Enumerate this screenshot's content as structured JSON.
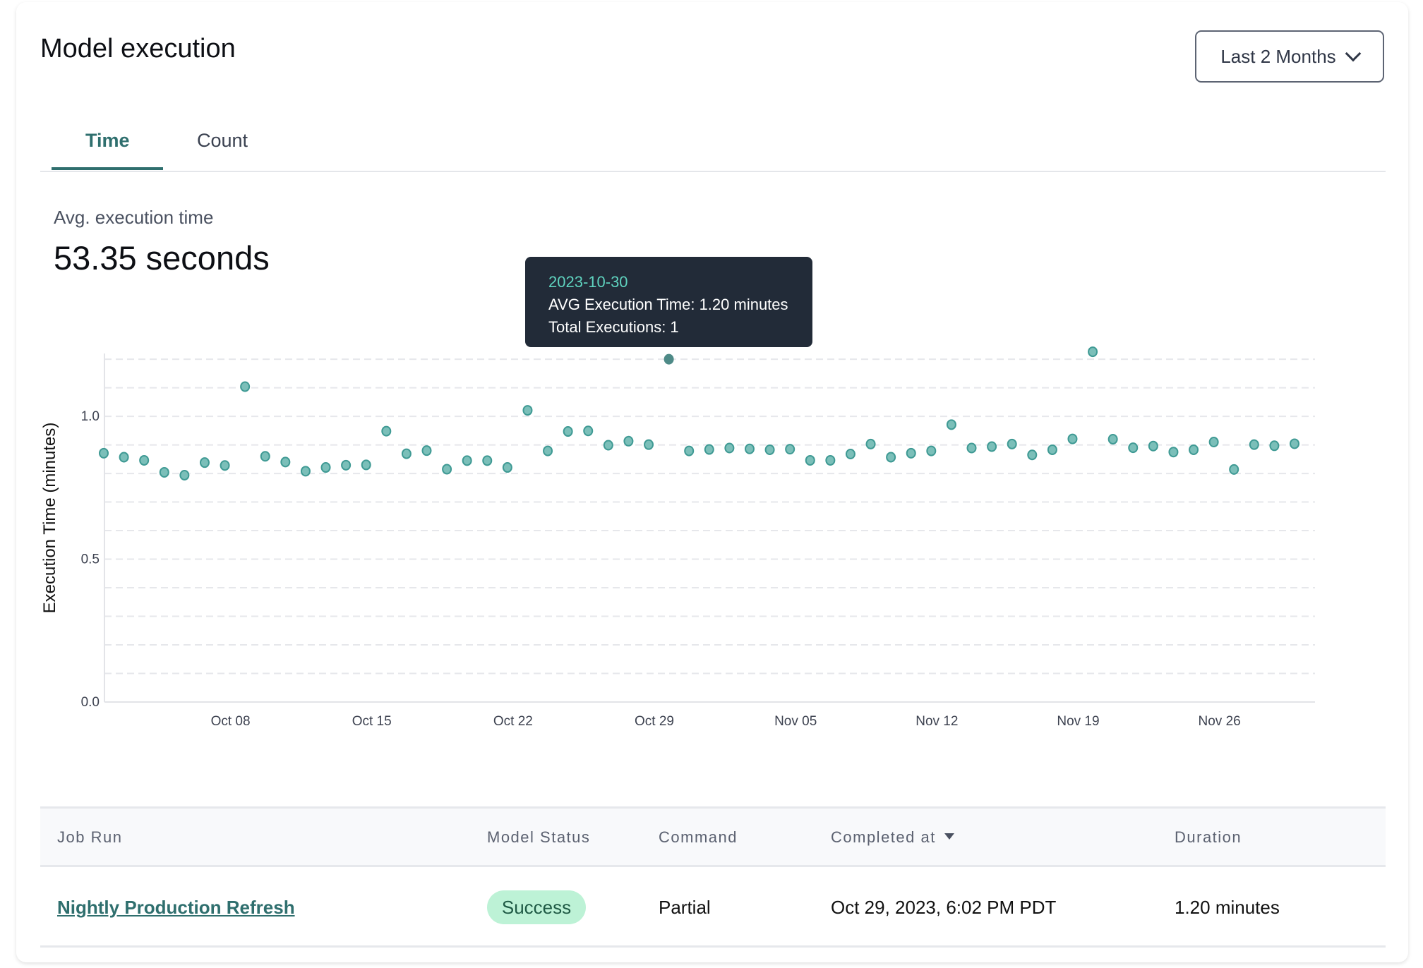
{
  "header": {
    "title": "Model execution",
    "range_dropdown": "Last 2 Months",
    "range_icon": "chevron-down-icon"
  },
  "tabs": [
    {
      "label": "Time",
      "active": true
    },
    {
      "label": "Count",
      "active": false
    }
  ],
  "summary": {
    "label": "Avg. execution time",
    "value": "53.35 seconds"
  },
  "tooltip": {
    "date": "2023-10-30",
    "avg_line": "AVG Execution Time: 1.20 minutes",
    "total_line": "Total Executions: 1"
  },
  "colors": {
    "accent": "#2f6f6e",
    "point_fill": "#7bbfb9",
    "point_stroke": "#3f9a94",
    "point_active": "#4e8a87",
    "tooltip_bg": "#222b38",
    "tooltip_date": "#5fd3bf",
    "badge_bg": "#bdf2d6"
  },
  "chart_data": {
    "type": "scatter",
    "ylabel": "Execution Time (minutes)",
    "xlabel": "",
    "ylim": [
      0,
      1.22
    ],
    "yticks": [
      "0.0",
      "0.5",
      "1.0"
    ],
    "ytick_values": [
      0,
      0.5,
      1.0
    ],
    "grid": true,
    "xticks": [
      {
        "date": "2023-10-08",
        "label": "Oct 08"
      },
      {
        "date": "2023-10-15",
        "label": "Oct 15"
      },
      {
        "date": "2023-10-22",
        "label": "Oct 22"
      },
      {
        "date": "2023-10-29",
        "label": "Oct 29"
      },
      {
        "date": "2023-11-05",
        "label": "Nov 05"
      },
      {
        "date": "2023-11-12",
        "label": "Nov 12"
      },
      {
        "date": "2023-11-19",
        "label": "Nov 19"
      },
      {
        "date": "2023-11-26",
        "label": "Nov 26"
      }
    ],
    "highlighted": "2023-10-30",
    "points": [
      [
        "2023-10-02",
        0.871
      ],
      [
        "2023-10-03",
        0.857
      ],
      [
        "2023-10-04",
        0.846
      ],
      [
        "2023-10-05",
        0.804
      ],
      [
        "2023-10-06",
        0.794
      ],
      [
        "2023-10-07",
        0.838
      ],
      [
        "2023-10-08",
        0.828
      ],
      [
        "2023-10-09",
        1.104
      ],
      [
        "2023-10-10",
        0.86
      ],
      [
        "2023-10-11",
        0.84
      ],
      [
        "2023-10-12",
        0.808
      ],
      [
        "2023-10-13",
        0.821
      ],
      [
        "2023-10-14",
        0.829
      ],
      [
        "2023-10-15",
        0.83
      ],
      [
        "2023-10-16",
        0.948
      ],
      [
        "2023-10-17",
        0.869
      ],
      [
        "2023-10-18",
        0.88
      ],
      [
        "2023-10-19",
        0.815
      ],
      [
        "2023-10-20",
        0.845
      ],
      [
        "2023-10-21",
        0.845
      ],
      [
        "2023-10-22",
        0.821
      ],
      [
        "2023-10-23",
        1.021
      ],
      [
        "2023-10-24",
        0.879
      ],
      [
        "2023-10-25",
        0.947
      ],
      [
        "2023-10-26",
        0.949
      ],
      [
        "2023-10-27",
        0.899
      ],
      [
        "2023-10-28",
        0.913
      ],
      [
        "2023-10-29",
        0.901
      ],
      [
        "2023-10-30",
        1.2
      ],
      [
        "2023-10-31",
        0.879
      ],
      [
        "2023-11-01",
        0.884
      ],
      [
        "2023-11-02",
        0.889
      ],
      [
        "2023-11-03",
        0.886
      ],
      [
        "2023-11-04",
        0.883
      ],
      [
        "2023-11-05",
        0.885
      ],
      [
        "2023-11-06",
        0.846
      ],
      [
        "2023-11-07",
        0.846
      ],
      [
        "2023-11-08",
        0.868
      ],
      [
        "2023-11-09",
        0.903
      ],
      [
        "2023-11-10",
        0.857
      ],
      [
        "2023-11-11",
        0.871
      ],
      [
        "2023-11-12",
        0.879
      ],
      [
        "2023-11-13",
        0.971
      ],
      [
        "2023-11-14",
        0.889
      ],
      [
        "2023-11-15",
        0.894
      ],
      [
        "2023-11-16",
        0.903
      ],
      [
        "2023-11-17",
        0.865
      ],
      [
        "2023-11-18",
        0.883
      ],
      [
        "2023-11-19",
        0.921
      ],
      [
        "2023-11-20",
        1.226
      ],
      [
        "2023-11-21",
        0.92
      ],
      [
        "2023-11-22",
        0.89
      ],
      [
        "2023-11-23",
        0.896
      ],
      [
        "2023-11-24",
        0.875
      ],
      [
        "2023-11-25",
        0.883
      ],
      [
        "2023-11-26",
        0.91
      ],
      [
        "2023-11-27",
        0.814
      ],
      [
        "2023-11-28",
        0.901
      ],
      [
        "2023-11-29",
        0.897
      ],
      [
        "2023-11-30",
        0.904
      ]
    ]
  },
  "table": {
    "columns": [
      "Job Run",
      "Model Status",
      "Command",
      "Completed at",
      "Duration"
    ],
    "sort_icon": "caret-down-icon",
    "rows": [
      {
        "job_run": "Nightly Production Refresh",
        "status": "Success",
        "command": "Partial",
        "completed_at": "Oct 29, 2023, 6:02 PM PDT",
        "duration": "1.20 minutes"
      }
    ]
  }
}
